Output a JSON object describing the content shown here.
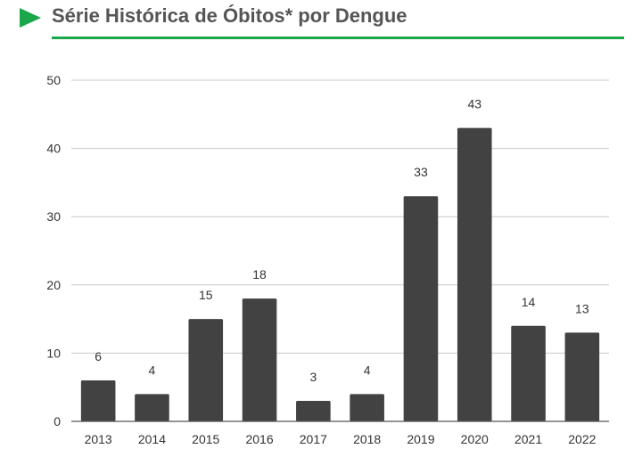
{
  "header": {
    "title": "Série Histórica de Óbitos* por Dengue",
    "accent_color": "#1aa64a",
    "arrow_icon": "play-triangle-icon"
  },
  "chart_data": {
    "type": "bar",
    "title": "",
    "xlabel": "",
    "ylabel": "",
    "categories": [
      "2013",
      "2014",
      "2015",
      "2016",
      "2017",
      "2018",
      "2019",
      "2020",
      "2021",
      "2022"
    ],
    "values": [
      6,
      4,
      15,
      18,
      3,
      4,
      33,
      43,
      14,
      13
    ],
    "ylim": [
      0,
      50
    ],
    "yticks": [
      0,
      10,
      20,
      30,
      40,
      50
    ],
    "grid": true,
    "data_labels": true,
    "bar_color": "#424242",
    "grid_color": "#c8c8c8",
    "label_color": "#333333"
  }
}
